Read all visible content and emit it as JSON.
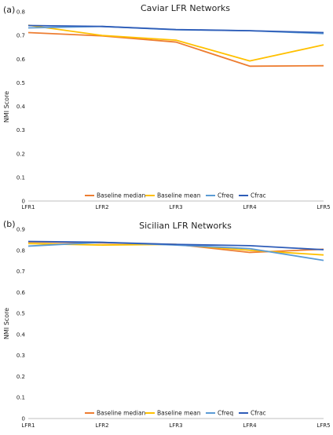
{
  "colors": {
    "baseline_median": "#ed7d31",
    "baseline_mean": "#ffc000",
    "cfreq": "#5b9bd5",
    "cfrac": "#2e5cb8",
    "axis": "#bfbfbf"
  },
  "chart_data": [
    {
      "type": "line",
      "panel_label": "(a)",
      "title": "Caviar LFR Networks",
      "ylabel": "NMI Score",
      "xlabel": "",
      "categories": [
        "LFR1",
        "LFR2",
        "LFR3",
        "LFR4",
        "LFR5"
      ],
      "ylim": [
        0,
        0.8
      ],
      "yticks": [
        "0",
        "0.1",
        "0.2",
        "0.3",
        "0.4",
        "0.5",
        "0.6",
        "0.7",
        "0.8"
      ],
      "grid": false,
      "legend_position": "bottom",
      "series": [
        {
          "name": "Baseline median",
          "color_key": "baseline_median",
          "values": [
            0.712,
            0.698,
            0.672,
            0.57,
            0.572
          ]
        },
        {
          "name": "Baseline mean",
          "color_key": "baseline_mean",
          "values": [
            0.743,
            0.7,
            0.68,
            0.592,
            0.66
          ]
        },
        {
          "name": "Cfreq",
          "color_key": "cfreq",
          "values": [
            0.732,
            0.738,
            0.724,
            0.72,
            0.708
          ]
        },
        {
          "name": "Cfrac",
          "color_key": "cfrac",
          "values": [
            0.742,
            0.738,
            0.725,
            0.72,
            0.712
          ]
        }
      ]
    },
    {
      "type": "line",
      "panel_label": "(b)",
      "title": "Sicilian LFR Networks",
      "ylabel": "NMI Score",
      "xlabel": "",
      "categories": [
        "LFR1",
        "LFR2",
        "LFR3",
        "LFR4",
        "LFR5"
      ],
      "ylim": [
        0,
        0.9
      ],
      "yticks": [
        "0",
        "0.1",
        "0.2",
        "0.3",
        "0.4",
        "0.5",
        "0.6",
        "0.7",
        "0.8",
        "0.9"
      ],
      "grid": false,
      "legend_position": "bottom",
      "series": [
        {
          "name": "Baseline median",
          "color_key": "baseline_median",
          "values": [
            0.84,
            0.835,
            0.828,
            0.79,
            0.805
          ]
        },
        {
          "name": "Baseline mean",
          "color_key": "baseline_mean",
          "values": [
            0.832,
            0.825,
            0.828,
            0.8,
            0.778
          ]
        },
        {
          "name": "Cfreq",
          "color_key": "cfreq",
          "values": [
            0.82,
            0.838,
            0.825,
            0.808,
            0.752
          ]
        },
        {
          "name": "Cfrac",
          "color_key": "cfrac",
          "values": [
            0.842,
            0.838,
            0.828,
            0.822,
            0.803
          ]
        }
      ]
    }
  ]
}
